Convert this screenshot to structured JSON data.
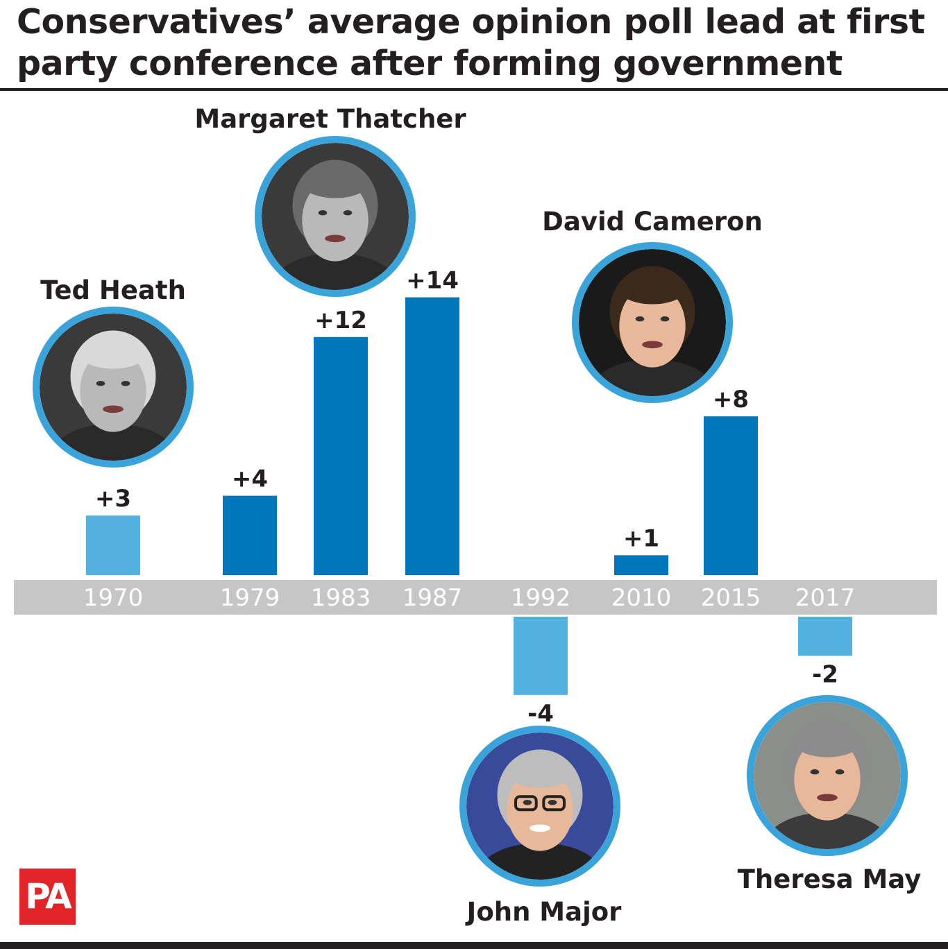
{
  "title": "Conservatives’ average opinion poll lead at first party conference after forming government",
  "logo": "PA",
  "colors": {
    "dark_bar": "#0077bb",
    "light_bar": "#52b1de",
    "axis_band": "#c6c6c6",
    "axis_text": "#ffffff",
    "label_text": "#231f20",
    "portrait_ring": "#3aa3d9"
  },
  "chart_data": {
    "type": "bar",
    "title": "Conservatives’ average opinion poll lead at first party conference after forming government",
    "xlabel": "",
    "ylabel": "",
    "categories": [
      "1970",
      "1979",
      "1983",
      "1987",
      "1992",
      "2010",
      "2015",
      "2017"
    ],
    "values": [
      3,
      4,
      12,
      14,
      -4,
      1,
      8,
      -2
    ],
    "value_labels": [
      "+3",
      "+4",
      "+12",
      "+14",
      "-4",
      "+1",
      "+8",
      "-2"
    ],
    "bar_shade": [
      "light",
      "dark",
      "dark",
      "dark",
      "light",
      "dark",
      "dark",
      "light"
    ],
    "ylim": [
      -4,
      14
    ],
    "grid": false,
    "legend": "none",
    "annotations": [
      {
        "name": "Ted Heath",
        "years": [
          "1970"
        ],
        "portrait_icon": "ted-heath-portrait"
      },
      {
        "name": "Margaret Thatcher",
        "years": [
          "1979",
          "1983",
          "1987"
        ],
        "portrait_icon": "margaret-thatcher-portrait"
      },
      {
        "name": "John Major",
        "years": [
          "1992"
        ],
        "portrait_icon": "john-major-portrait"
      },
      {
        "name": "David Cameron",
        "years": [
          "2010",
          "2015"
        ],
        "portrait_icon": "david-cameron-portrait"
      },
      {
        "name": "Theresa May",
        "years": [
          "2017"
        ],
        "portrait_icon": "theresa-may-portrait"
      }
    ]
  }
}
